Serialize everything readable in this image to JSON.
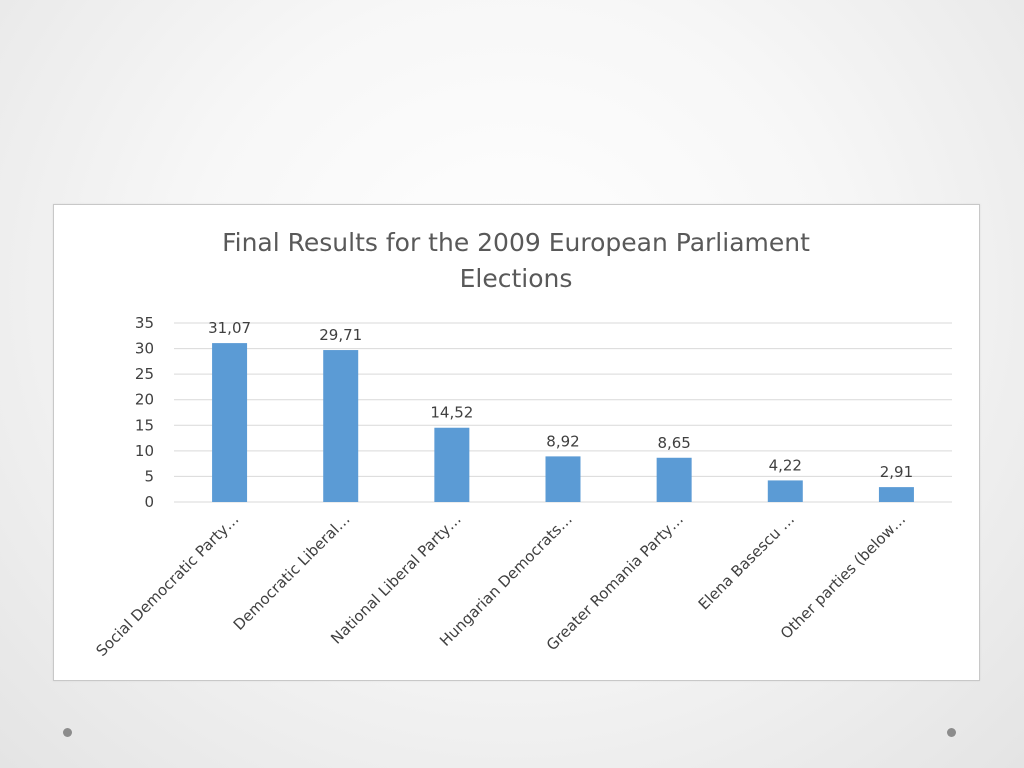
{
  "slide": {
    "decor": [
      "bullet-dot-icon",
      "bullet-dot-icon"
    ]
  },
  "chart_data": {
    "type": "bar",
    "title_lines": [
      "Final Results for the 2009 European Parliament",
      "Elections"
    ],
    "categories": [
      "Social Democratic Party…",
      "Democratic Liberal…",
      "National Liberal Party…",
      "Hungarian Democrats…",
      "Greater Romania Party…",
      "Elena Basescu …",
      "Other parties (below…"
    ],
    "values": [
      31.07,
      29.71,
      14.52,
      8.92,
      8.65,
      4.22,
      2.91
    ],
    "value_labels": [
      "31,07",
      "29,71",
      "14,52",
      "8,92",
      "8,65",
      "4,22",
      "2,91"
    ],
    "y_ticks": [
      "0",
      "5",
      "10",
      "15",
      "20",
      "25",
      "30",
      "35"
    ],
    "ylim": [
      0,
      35
    ],
    "grid": true,
    "legend": "none",
    "bar_color": "#5b9bd5",
    "xlabel": "",
    "ylabel": ""
  }
}
